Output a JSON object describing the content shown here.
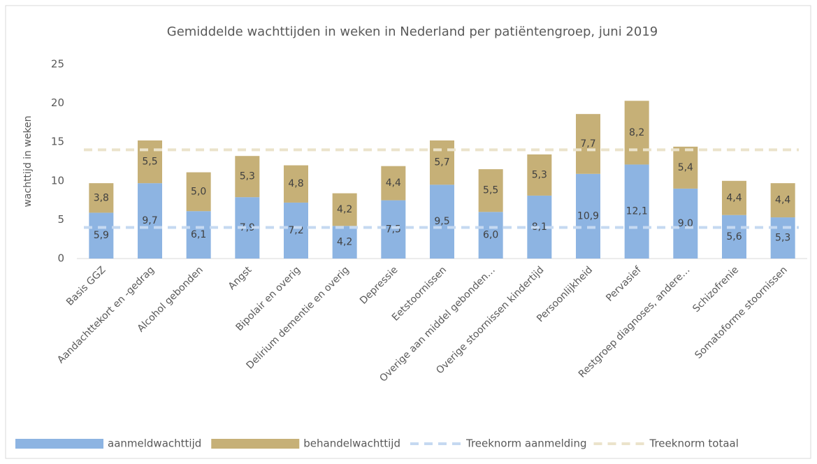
{
  "chart_data": {
    "type": "stacked_bar",
    "title": "Gemiddelde wachttijden in weken in Nederland per patiëntengroep, juni 2019",
    "y_label": "wachttijd in weken",
    "categories": [
      "Basis GGZ",
      "Aandachttekort en -gedrag",
      "Alcohol gebonden",
      "Angst",
      "Bipolair en overig",
      "Delirium dementie en overig",
      "Depressie",
      "Eetstoornissen",
      "Overige aan middel gebonden…",
      "Overige stoornissen kindertijd",
      "Persoonlijkheid",
      "Pervasief",
      "Restgroep diagnoses, andere…",
      "Schizofrenie",
      "Somatoforme stoornissen"
    ],
    "series": [
      {
        "name": "aanmeldwachttijd",
        "color": "#8db4e2",
        "values": [
          5.9,
          9.7,
          6.1,
          7.9,
          7.2,
          4.2,
          7.5,
          9.5,
          6.0,
          8.1,
          10.9,
          12.1,
          9.0,
          5.6,
          5.3
        ],
        "value_labels": [
          "5,9",
          "9,7",
          "6,1",
          "7,9",
          "7,2",
          "4,2",
          "7,5",
          "9,5",
          "6,0",
          "8,1",
          "10,9",
          "12,1",
          "9,0",
          "5,6",
          "5,3"
        ]
      },
      {
        "name": "behandelwachttijd",
        "color": "#c6b077",
        "values": [
          3.8,
          5.5,
          5.0,
          5.3,
          4.8,
          4.2,
          4.4,
          5.7,
          5.5,
          5.3,
          7.7,
          8.2,
          5.4,
          4.4,
          4.4
        ],
        "value_labels": [
          "3,8",
          "5,5",
          "5,0",
          "5,3",
          "4,8",
          "4,2",
          "4,4",
          "5,7",
          "5,5",
          "5,3",
          "7,7",
          "8,2",
          "5,4",
          "4,4",
          "4,4"
        ]
      }
    ],
    "reference_lines": [
      {
        "name": "Treeknorm aanmelding",
        "value": 4,
        "color": "#c5d9f1",
        "style": "dashed"
      },
      {
        "name": "Treeknorm totaal",
        "value": 14,
        "color": "#ebe3cb",
        "style": "dashed"
      }
    ],
    "ylim": [
      0,
      25
    ],
    "yticks": [
      0,
      5,
      10,
      15,
      20,
      25
    ],
    "grid": false,
    "legend": "bottom"
  }
}
